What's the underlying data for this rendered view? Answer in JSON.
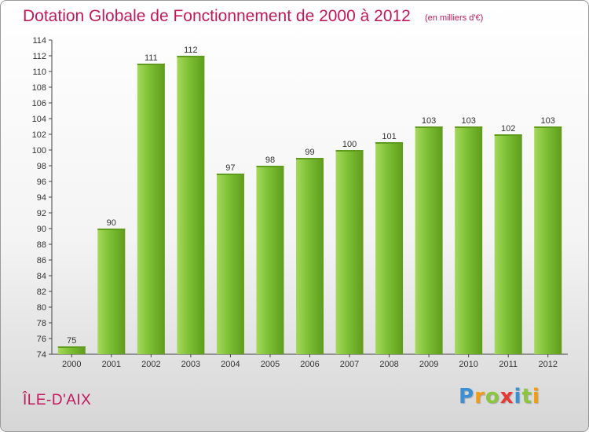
{
  "title": "Dotation Globale de Fonctionnement de 2000 à 2012",
  "unit_note": "(en milliers d'€)",
  "commune": "ÎLE-D'AIX",
  "logo": {
    "letters": [
      "P",
      "r",
      "o",
      "x",
      "i",
      "t",
      "i"
    ],
    "colors": [
      "#3b8fd4",
      "#f39c12",
      "#8cc63f",
      "#e53935",
      "#3b8fd4",
      "#8cc63f",
      "#f39c12"
    ]
  },
  "colors": {
    "bar": "#7cbf34",
    "bar_light": "#a6d85c",
    "bar_dark": "#5f9c1c",
    "accent": "#c2185b"
  },
  "chart_data": {
    "type": "bar",
    "categories": [
      "2000",
      "2001",
      "2002",
      "2003",
      "2004",
      "2005",
      "2006",
      "2007",
      "2008",
      "2009",
      "2010",
      "2011",
      "2012"
    ],
    "values": [
      75,
      90,
      111,
      112,
      97,
      98,
      99,
      100,
      101,
      103,
      103,
      102,
      103
    ],
    "value_labels": [
      "75",
      "90",
      "111",
      "112",
      "97",
      "98",
      "99",
      "100",
      "101",
      "103",
      "103",
      "102",
      "103"
    ],
    "ylim": [
      74,
      114
    ],
    "yticks": [
      74,
      76,
      78,
      80,
      82,
      84,
      86,
      88,
      90,
      92,
      94,
      96,
      98,
      100,
      102,
      104,
      106,
      108,
      110,
      112,
      114
    ],
    "grid": false
  }
}
